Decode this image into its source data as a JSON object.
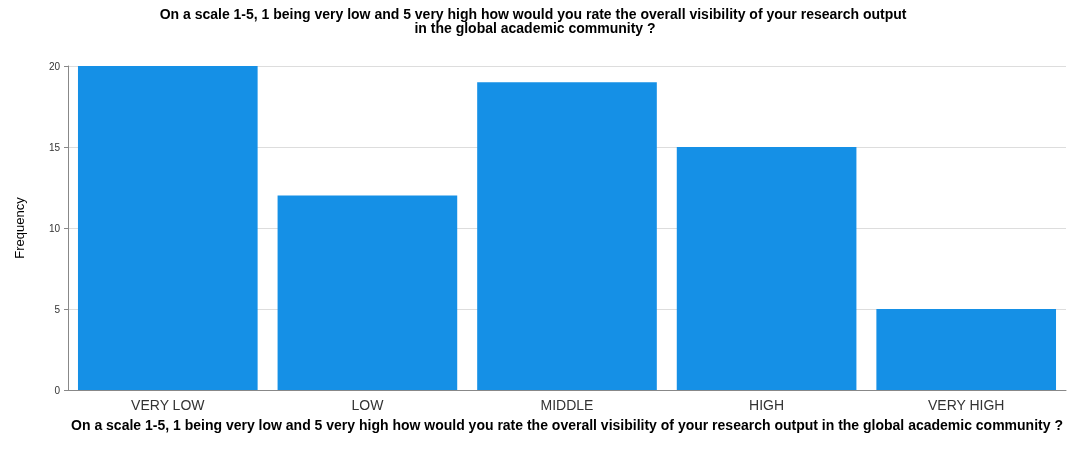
{
  "chart_data": {
    "type": "bar",
    "title": "On a scale 1-5, 1 being very low and 5 very high how would you rate the overall visibility of your research output in the global academic community ?",
    "xlabel": "On a scale 1-5, 1 being very low and 5 very high how would you rate the overall visibility of your research output in the global academic community ?",
    "ylabel": "Frequency",
    "categories": [
      "VERY LOW",
      "LOW",
      "MIDDLE",
      "HIGH",
      "VERY HIGH"
    ],
    "values": [
      20,
      12,
      19,
      15,
      5
    ],
    "color": "#1590e6",
    "ylim": [
      0,
      20
    ],
    "yticks": [
      0,
      5,
      10,
      15,
      20
    ],
    "grid": "y"
  }
}
